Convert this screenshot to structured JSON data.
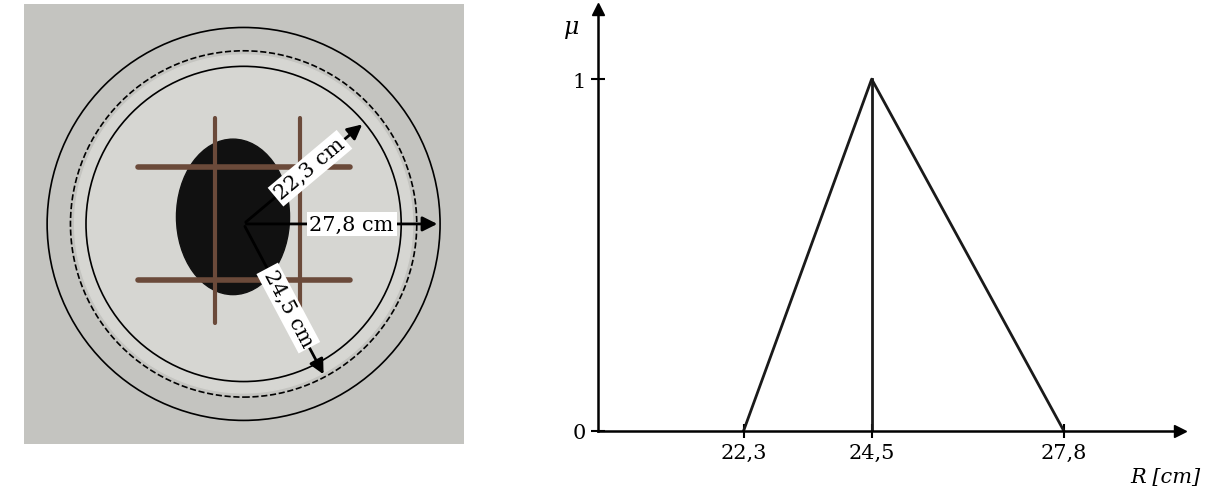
{
  "photo": {
    "measurements": [
      {
        "radius": 22.3,
        "label": "22,3 cm"
      },
      {
        "radius": 27.8,
        "label": "27,8 cm"
      },
      {
        "radius": 24.5,
        "label": "24,5 cm"
      }
    ]
  },
  "chart_data": {
    "type": "line",
    "x": [
      22.3,
      24.5,
      27.8
    ],
    "values": [
      0,
      1,
      0
    ],
    "color": "#1a1a1a",
    "x_label": "R [cm]",
    "y_label": "μ",
    "xlim": [
      19.8,
      29.8
    ],
    "ylim": [
      0,
      1.2
    ],
    "xticks": [
      {
        "value": 22.3,
        "label": "22,3"
      },
      {
        "value": 24.5,
        "label": "24,5"
      },
      {
        "value": 27.8,
        "label": "27,8"
      }
    ],
    "yticks": [
      0,
      1
    ],
    "grid": false
  }
}
